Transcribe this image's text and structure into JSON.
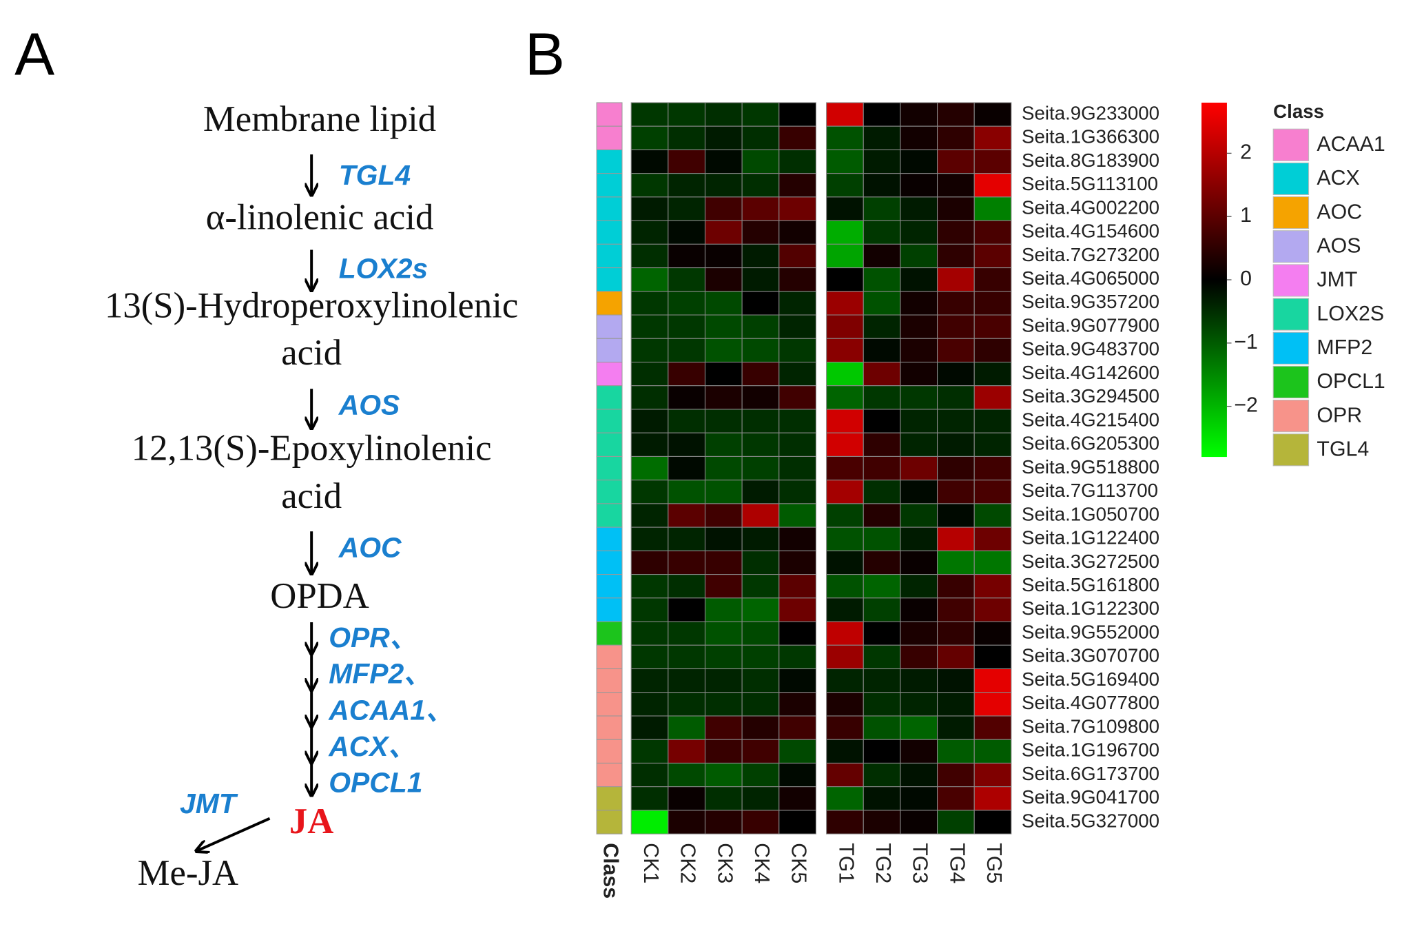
{
  "panel_labels": [
    "A",
    "B"
  ],
  "pathway": {
    "nodes": [
      [
        "Membrane lipid"
      ],
      [
        "α-linolenic acid"
      ],
      [
        "13(S)-Hydroperoxylinolenic",
        "acid"
      ],
      [
        "12,13(S)-Epoxylinolenic",
        "acid"
      ],
      [
        "OPDA"
      ]
    ],
    "enzymes": [
      "TGL4",
      "LOX2s",
      "AOS",
      "AOC"
    ],
    "final_enzymes": [
      "OPR、",
      "MFP2、",
      "ACAA1、",
      "ACX、",
      "OPCL1"
    ],
    "product": "JA",
    "methylation_enzyme": "JMT",
    "methylated_product": "Me-JA"
  },
  "chart_data": {
    "type": "heatmap",
    "column_groups": [
      [
        "CK1",
        "CK2",
        "CK3",
        "CK4",
        "CK5"
      ],
      [
        "TG1",
        "TG2",
        "TG3",
        "TG4",
        "TG5"
      ]
    ],
    "rows": [
      "Seita.9G233000",
      "Seita.1G366300",
      "Seita.8G183900",
      "Seita.5G113100",
      "Seita.4G002200",
      "Seita.4G154600",
      "Seita.7G273200",
      "Seita.4G065000",
      "Seita.9G357200",
      "Seita.9G077900",
      "Seita.9G483700",
      "Seita.4G142600",
      "Seita.3G294500",
      "Seita.4G215400",
      "Seita.6G205300",
      "Seita.9G518800",
      "Seita.7G113700",
      "Seita.1G050700",
      "Seita.1G122400",
      "Seita.3G272500",
      "Seita.5G161800",
      "Seita.1G122300",
      "Seita.9G552000",
      "Seita.3G070700",
      "Seita.5G169400",
      "Seita.4G077800",
      "Seita.7G109800",
      "Seita.1G196700",
      "Seita.6G173700",
      "Seita.9G041700",
      "Seita.5G327000"
    ],
    "values": [
      [
        -0.6,
        -0.6,
        -0.5,
        -0.6,
        0.0,
        2.3,
        0.0,
        0.2,
        0.4,
        0.1
      ],
      [
        -0.7,
        -0.5,
        -0.3,
        -0.5,
        0.6,
        -0.9,
        -0.3,
        0.2,
        0.5,
        1.5
      ],
      [
        -0.1,
        0.7,
        -0.1,
        -0.8,
        -0.5,
        -1.0,
        -0.3,
        -0.1,
        1.0,
        1.0
      ],
      [
        -0.6,
        -0.4,
        -0.4,
        -0.5,
        0.4,
        -0.7,
        -0.2,
        0.1,
        0.2,
        2.5
      ],
      [
        -0.3,
        -0.4,
        0.7,
        1.0,
        1.2,
        -0.2,
        -0.7,
        -0.3,
        0.3,
        -1.4
      ],
      [
        -0.4,
        -0.1,
        1.2,
        0.4,
        0.2,
        -1.9,
        -0.6,
        -0.4,
        0.5,
        0.8
      ],
      [
        -0.5,
        0.1,
        0.1,
        -0.3,
        0.9,
        -1.8,
        0.2,
        -0.7,
        0.5,
        1.0
      ],
      [
        -1.1,
        -0.6,
        0.3,
        -0.3,
        0.4,
        0.0,
        -0.9,
        -0.2,
        1.8,
        0.6
      ],
      [
        -0.6,
        -0.7,
        -0.8,
        0.0,
        -0.4,
        1.7,
        -0.9,
        0.2,
        0.6,
        0.6
      ],
      [
        -0.6,
        -0.6,
        -0.8,
        -0.7,
        -0.4,
        1.4,
        -0.4,
        0.3,
        0.7,
        0.8
      ],
      [
        -0.6,
        -0.6,
        -0.9,
        -0.8,
        -0.6,
        1.5,
        -0.1,
        0.3,
        0.8,
        0.5
      ],
      [
        -0.5,
        0.6,
        0.0,
        0.6,
        -0.4,
        -2.2,
        1.2,
        0.2,
        -0.1,
        -0.3
      ],
      [
        -0.5,
        0.1,
        0.3,
        0.2,
        0.7,
        -1.1,
        -0.6,
        -0.6,
        -0.5,
        1.7
      ],
      [
        -0.3,
        -0.5,
        -0.5,
        -0.5,
        -0.5,
        2.3,
        0.0,
        -0.4,
        -0.4,
        -0.4
      ],
      [
        -0.3,
        -0.2,
        -0.7,
        -0.6,
        -0.5,
        2.3,
        0.5,
        -0.4,
        -0.3,
        -0.4
      ],
      [
        -1.2,
        -0.1,
        -0.8,
        -0.7,
        -0.5,
        0.8,
        0.7,
        1.2,
        0.5,
        0.7
      ],
      [
        -0.6,
        -0.9,
        -0.9,
        -0.3,
        -0.5,
        1.8,
        -0.5,
        -0.1,
        0.7,
        0.8
      ],
      [
        -0.4,
        1.0,
        0.7,
        1.9,
        -1.0,
        -0.7,
        0.4,
        -0.6,
        -0.1,
        -0.8
      ],
      [
        -0.4,
        -0.4,
        -0.2,
        -0.3,
        0.2,
        -0.9,
        -0.9,
        -0.3,
        2.0,
        1.2
      ],
      [
        0.5,
        0.6,
        0.6,
        -0.5,
        0.3,
        -0.2,
        0.4,
        0.1,
        -1.3,
        -1.3
      ],
      [
        -0.6,
        -0.5,
        0.7,
        -0.6,
        1.0,
        -0.9,
        -1.1,
        -0.4,
        0.6,
        1.3
      ],
      [
        -0.6,
        0.0,
        -1.0,
        -1.1,
        1.2,
        -0.3,
        -0.7,
        0.1,
        0.7,
        1.2
      ],
      [
        -0.6,
        -0.6,
        -0.9,
        -0.8,
        0.0,
        2.1,
        0.0,
        0.3,
        0.5,
        0.1
      ],
      [
        -0.6,
        -0.6,
        -0.7,
        -0.7,
        -0.6,
        1.7,
        -0.6,
        0.6,
        1.1,
        0.0
      ],
      [
        -0.4,
        -0.4,
        -0.4,
        -0.5,
        -0.1,
        -0.4,
        -0.4,
        -0.3,
        -0.2,
        2.5
      ],
      [
        -0.4,
        -0.5,
        -0.5,
        -0.5,
        0.3,
        0.3,
        -0.5,
        -0.4,
        -0.3,
        2.5
      ],
      [
        -0.3,
        -1.0,
        0.7,
        0.4,
        0.7,
        0.6,
        -0.9,
        -1.1,
        -0.3,
        0.9
      ],
      [
        -0.6,
        1.3,
        0.6,
        0.7,
        -0.8,
        -0.2,
        0.0,
        0.2,
        -1.0,
        -1.0
      ],
      [
        -0.5,
        -0.8,
        -1.0,
        -0.7,
        -0.1,
        1.1,
        -0.5,
        -0.2,
        0.7,
        1.4
      ],
      [
        -0.5,
        0.1,
        -0.5,
        -0.4,
        0.2,
        -1.1,
        -0.2,
        -0.1,
        0.8,
        1.9
      ],
      [
        -2.6,
        0.3,
        0.4,
        0.6,
        0.0,
        0.5,
        0.3,
        0.1,
        -0.7,
        0.0
      ]
    ],
    "colorscale": [
      "#00ff00",
      "#000000",
      "#ff0000"
    ],
    "zlim": [
      -2.8,
      2.8
    ],
    "zticks": [
      2,
      1,
      0,
      {
        "value": -1,
        "label": "−1"
      },
      {
        "value": -2,
        "label": "−2"
      }
    ],
    "annotation_label": "Class",
    "row_classes": [
      "ACAA1",
      "ACAA1",
      "ACX",
      "ACX",
      "ACX",
      "ACX",
      "ACX",
      "ACX",
      "AOC",
      "AOS",
      "AOS",
      "JMT",
      "LOX2S",
      "LOX2S",
      "LOX2S",
      "LOX2S",
      "LOX2S",
      "LOX2S",
      "MFP2",
      "MFP2",
      "MFP2",
      "MFP2",
      "OPCL1",
      "OPR",
      "OPR",
      "OPR",
      "OPR",
      "OPR",
      "OPR",
      "TGL4",
      "TGL4"
    ],
    "legend_title": "Class",
    "classes": [
      {
        "name": "ACAA1",
        "color": "#f77fcf"
      },
      {
        "name": "ACX",
        "color": "#00ced6"
      },
      {
        "name": "AOC",
        "color": "#f5a300"
      },
      {
        "name": "AOS",
        "color": "#b3a9f0"
      },
      {
        "name": "JMT",
        "color": "#f47ef0"
      },
      {
        "name": "LOX2S",
        "color": "#18d6a0"
      },
      {
        "name": "MFP2",
        "color": "#00c0f5"
      },
      {
        "name": "OPCL1",
        "color": "#1cc41c"
      },
      {
        "name": "OPR",
        "color": "#f7938a"
      },
      {
        "name": "TGL4",
        "color": "#b5b53a"
      }
    ]
  }
}
